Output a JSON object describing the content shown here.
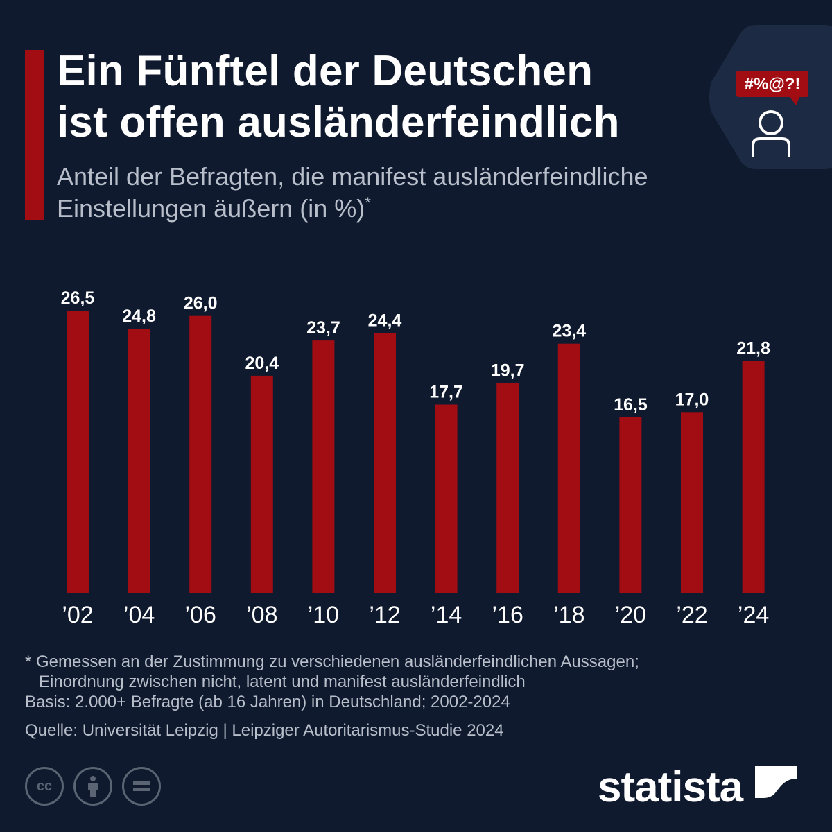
{
  "header": {
    "title_line1": "Ein Fünftel der Deutschen",
    "title_line2": "ist offen ausländerfeindlich",
    "subtitle_line1": "Anteil der Befragten, die manifest ausländerfeindliche",
    "subtitle_line2": "Einstellungen äußern (in %)",
    "subtitle_mark": "*",
    "speech_bubble_text": "#%@?!"
  },
  "colors": {
    "background": "#0f1a2e",
    "bar": "#a10d13",
    "accent": "#a10d13",
    "muted_text": "#b8bfcb"
  },
  "chart_data": {
    "type": "bar",
    "title": "Ein Fünftel der Deutschen ist offen ausländerfeindlich",
    "subtitle": "Anteil der Befragten, die manifest ausländerfeindliche Einstellungen äußern (in %)*",
    "categories": [
      "’02",
      "’04",
      "’06",
      "’08",
      "’10",
      "’12",
      "’14",
      "’16",
      "’18",
      "’20",
      "’22",
      "’24"
    ],
    "values": [
      26.5,
      24.8,
      26.0,
      20.4,
      23.7,
      24.4,
      17.7,
      19.7,
      23.4,
      16.5,
      17.0,
      21.8
    ],
    "value_labels": [
      "26,5",
      "24,8",
      "26,0",
      "20,4",
      "23,7",
      "24,4",
      "17,7",
      "19,7",
      "23,4",
      "16,5",
      "17,0",
      "21,8"
    ],
    "xlabel": "",
    "ylabel": "",
    "ylim": [
      0,
      26.5
    ],
    "grid": false,
    "legend": "none"
  },
  "footnotes": {
    "note_line1": "* Gemessen an der Zustimmung zu verschiedenen ausländerfeindlichen Aussagen;",
    "note_line2": "Einordnung zwischen nicht, latent und manifest ausländerfeindlich",
    "basis": "Basis: 2.000+ Befragte (ab 16 Jahren) in Deutschland; 2002-2024",
    "source": "Quelle: Universität Leipzig | Leipziger Autoritarismus-Studie 2024"
  },
  "footer": {
    "license_icons": [
      "cc-icon",
      "attribution-icon",
      "no-derivatives-icon"
    ],
    "license_cc_text": "cc",
    "brand": "statista"
  }
}
